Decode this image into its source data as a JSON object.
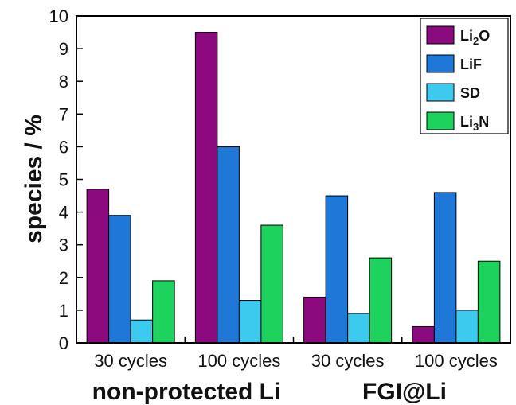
{
  "chart_data": {
    "type": "bar",
    "ylabel": "species / %",
    "ylim": [
      0,
      10
    ],
    "yticks": [
      0,
      1,
      2,
      3,
      4,
      5,
      6,
      7,
      8,
      9,
      10
    ],
    "categories": [
      "30 cycles",
      "100 cycles",
      "30 cycles",
      "100 cycles"
    ],
    "groups": [
      {
        "label": "non-protected Li"
      },
      {
        "label": "FGI@Li"
      }
    ],
    "series": [
      {
        "name": "Li2O",
        "name_base": "Li",
        "name_sub": "2",
        "name_tail": "O",
        "color": "#8B0A7E",
        "values": [
          4.7,
          9.5,
          1.4,
          0.5
        ]
      },
      {
        "name": "LiF",
        "name_base": "LiF",
        "name_sub": "",
        "name_tail": "",
        "color": "#1F78D8",
        "values": [
          3.9,
          6.0,
          4.5,
          4.6
        ]
      },
      {
        "name": "SD",
        "name_base": "SD",
        "name_sub": "",
        "name_tail": "",
        "color": "#3CCBEF",
        "values": [
          0.7,
          1.3,
          0.9,
          1.0
        ]
      },
      {
        "name": "Li3N",
        "name_base": "Li",
        "name_sub": "3",
        "name_tail": "N",
        "color": "#1ED25E",
        "values": [
          1.9,
          3.6,
          2.6,
          2.5
        ]
      }
    ],
    "grid": false,
    "legend_position": "top-right"
  }
}
